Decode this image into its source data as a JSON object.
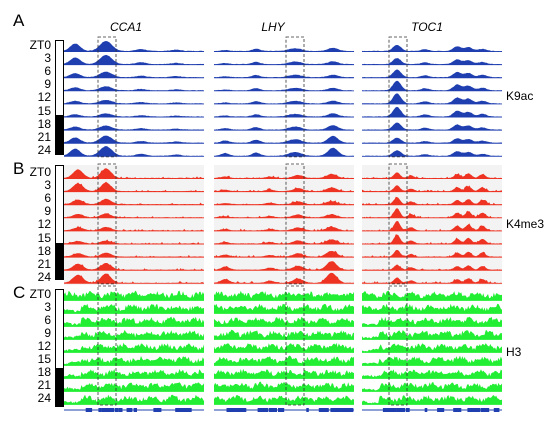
{
  "panels": [
    {
      "letter": "A",
      "mark": "K9ac",
      "color": "#1f3fb0",
      "bg": "#ffffff"
    },
    {
      "letter": "B",
      "mark": "K4me3",
      "color": "#ee3322",
      "bg": "#f3f3f3"
    },
    {
      "letter": "C",
      "mark": "H3",
      "color": "#22ee33",
      "bg": "#ffffff"
    }
  ],
  "genes": [
    "CCA1",
    "LHY",
    "TOC1"
  ],
  "timepoints": [
    "ZT0",
    "3",
    "6",
    "9",
    "12",
    "15",
    "18",
    "21",
    "24"
  ]
}
